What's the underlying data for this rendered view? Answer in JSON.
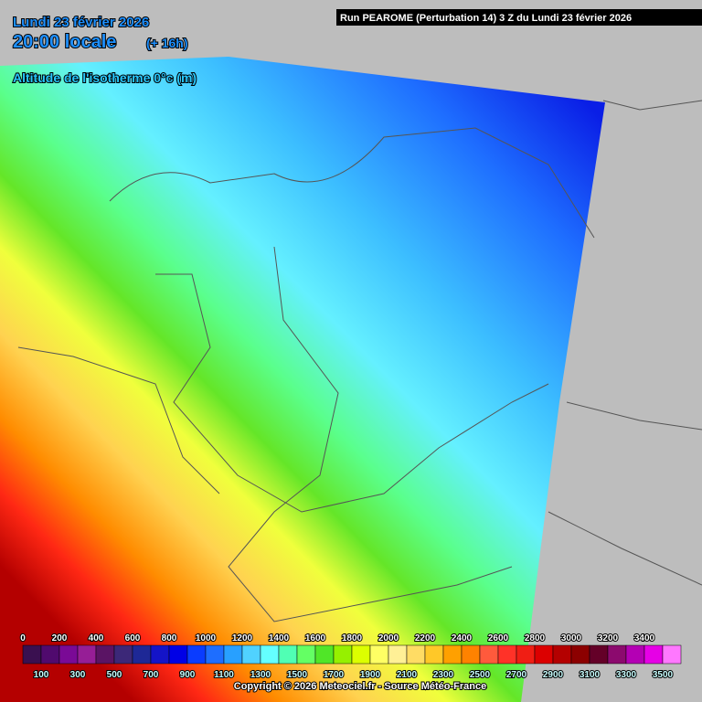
{
  "header": {
    "date": "Lundi 23 février 2026",
    "time": "20:00 locale",
    "lead": "(+ 16h)",
    "field": "Altitude de l'isotherme 0°c (m)",
    "run": "Run PEAROME (Perturbation 14) 3 Z du Lundi 23 février 2026"
  },
  "legend": {
    "top_labels": [
      "0",
      "200",
      "400",
      "600",
      "800",
      "1000",
      "1200",
      "1400",
      "1600",
      "1800",
      "2000",
      "2200",
      "2400",
      "2600",
      "2800",
      "3000",
      "3200",
      "3400"
    ],
    "bottom_labels": [
      "100",
      "300",
      "500",
      "700",
      "900",
      "1100",
      "1300",
      "1500",
      "1700",
      "1900",
      "2100",
      "2300",
      "2500",
      "2700",
      "2900",
      "3100",
      "3300",
      "3500"
    ],
    "colors": [
      "#3a1050",
      "#500a6e",
      "#7a0a96",
      "#961e96",
      "#5a1464",
      "#3c2878",
      "#1e2896",
      "#1414c8",
      "#0000e6",
      "#0a3cff",
      "#1e6eff",
      "#28a0ff",
      "#50d2ff",
      "#64ffff",
      "#50ffb4",
      "#64ff64",
      "#50e628",
      "#96f000",
      "#dcff00",
      "#ffff64",
      "#fff096",
      "#ffdc64",
      "#ffc828",
      "#ffa000",
      "#ff8200",
      "#ff5a3c",
      "#ff3228",
      "#f01e14",
      "#dc0000",
      "#b40000",
      "#8c0000",
      "#640028",
      "#8c0a6e",
      "#b400b4",
      "#e600e6",
      "#ff78ff"
    ]
  },
  "footer": {
    "copyright": "Copyright © 2026 Meteociel.fr - Source Météo-France"
  }
}
